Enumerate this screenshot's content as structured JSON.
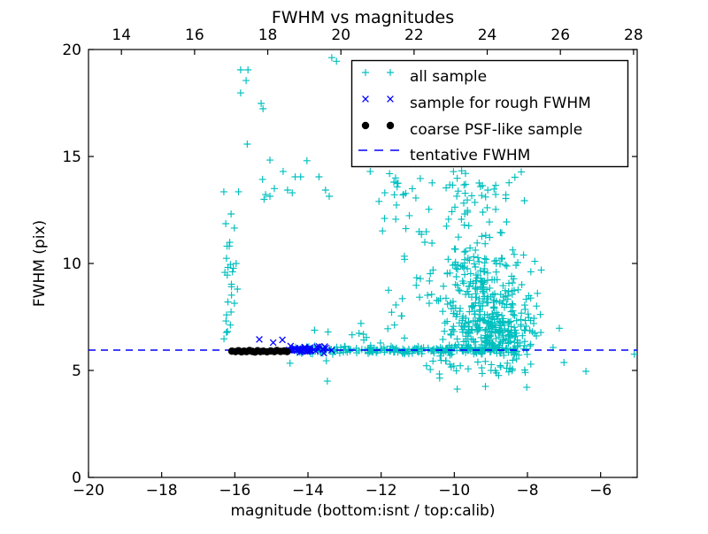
{
  "chart_data": {
    "type": "scatter",
    "title": "FWHM vs magnitudes",
    "xlabel": "magnitude (bottom:isnt / top:calib)",
    "ylabel": "FWHM (pix)",
    "xlim": [
      -20,
      -5
    ],
    "ylim": [
      0,
      20
    ],
    "top_xlim": [
      13.1,
      28.1
    ],
    "xticks": [
      -20,
      -18,
      -16,
      -14,
      -12,
      -10,
      -8,
      -6
    ],
    "yticks": [
      0,
      5,
      10,
      15,
      20
    ],
    "top_xticks": [
      14,
      16,
      18,
      20,
      22,
      24,
      26,
      28
    ],
    "grid": false,
    "tentative_fwhm": 5.95,
    "colors": {
      "all_sample": "#00bfbf",
      "rough_fwhm": "#0000ff",
      "psf_like": "#000000",
      "fwhm_line": "#0000ff",
      "spine": "#000000",
      "background": "#ffffff"
    },
    "legend": {
      "position": "upper right",
      "entries": [
        {
          "label": "all sample",
          "marker": "plus",
          "color": "#00bfbf"
        },
        {
          "label": "sample for rough FWHM",
          "marker": "x",
          "color": "#0000ff"
        },
        {
          "label": "coarse PSF-like sample",
          "marker": "dot",
          "color": "#000000"
        },
        {
          "label": "tentative FWHM",
          "marker": "dashed-line",
          "color": "#0000ff"
        }
      ]
    },
    "rng_seed": 7,
    "series": [
      {
        "name": "all sample",
        "marker": "plus",
        "color": "#00bfbf",
        "points": [
          [
            -15.84,
            19.05
          ],
          [
            -15.64,
            19.05
          ],
          [
            -15.69,
            18.55
          ],
          [
            -15.84,
            17.97
          ],
          [
            -15.28,
            17.48
          ],
          [
            -15.23,
            17.23
          ],
          [
            -15.66,
            15.58
          ],
          [
            -13.35,
            19.62
          ],
          [
            -13.22,
            19.45
          ],
          [
            -15.04,
            14.83
          ],
          [
            -14.03,
            14.8
          ],
          [
            -14.68,
            14.3
          ],
          [
            -14.35,
            14.05
          ],
          [
            -14.2,
            14.05
          ],
          [
            -13.7,
            14.05
          ],
          [
            -15.24,
            13.93
          ],
          [
            -14.92,
            13.5
          ],
          [
            -14.56,
            13.43
          ],
          [
            -13.52,
            13.43
          ],
          [
            -16.3,
            13.35
          ],
          [
            -15.9,
            13.35
          ],
          [
            -15.16,
            13.22
          ],
          [
            -14.43,
            13.3
          ],
          [
            -15.04,
            13.14
          ],
          [
            -13.42,
            13.14
          ],
          [
            -15.2,
            13.0
          ],
          [
            -12.3,
            14.3
          ],
          [
            -11.77,
            14.2
          ],
          [
            -10.93,
            13.97
          ],
          [
            -11.65,
            13.8
          ],
          [
            -11.9,
            13.3
          ],
          [
            -11.4,
            13.2
          ],
          [
            -11.05,
            13.06
          ],
          [
            -12.06,
            12.9
          ],
          [
            -11.58,
            12.73
          ],
          [
            -12.55,
            7.2
          ],
          [
            -13.45,
            6.8
          ],
          [
            -14.49,
            5.34
          ],
          [
            -13.5,
            5.45
          ],
          [
            -13.47,
            4.5
          ],
          [
            -10.4,
            4.64
          ],
          [
            -9.92,
            4.13
          ],
          [
            -9.15,
            4.25
          ],
          [
            -8.02,
            4.21
          ],
          [
            -8.55,
            5.34
          ],
          [
            -8.51,
            4.93
          ],
          [
            -7.13,
            6.97
          ],
          [
            -7.3,
            6.07
          ],
          [
            -7.0,
            5.37
          ],
          [
            -6.4,
            4.96
          ],
          [
            -5.08,
            5.76
          ],
          [
            -7.8,
            10.1
          ]
        ],
        "clusters": [
          {
            "n": 18,
            "x": {
              "u": [
                -16.3,
                -15.92
              ]
            },
            "y": {
              "u": [
                6.25,
                9.9
              ]
            }
          },
          {
            "n": 9,
            "x": {
              "u": [
                -16.28,
                -15.9
              ]
            },
            "y": {
              "u": [
                9.9,
                12.45
              ]
            }
          },
          {
            "n": 11,
            "x": {
              "u": [
                -12.05,
                -11.3
              ]
            },
            "y": {
              "u": [
                8.5,
                14.2
              ]
            }
          },
          {
            "n": 8,
            "x": {
              "u": [
                -12.1,
                -11.2
              ]
            },
            "y": {
              "u": [
                6.5,
                8.4
              ]
            }
          },
          {
            "n": 75,
            "x": {
              "g": [
                -9.6,
                0.95,
                -11.6,
                -7.8
              ]
            },
            "y": {
              "u": [
                10.3,
                14.35
              ]
            }
          },
          {
            "n": 140,
            "x": {
              "g": [
                -9.35,
                0.8,
                -11.5,
                -7.6
              ]
            },
            "y": {
              "u": [
                8.0,
                10.3
              ]
            }
          },
          {
            "n": 270,
            "x": {
              "g": [
                -8.9,
                0.6,
                -10.7,
                -7.5
              ]
            },
            "y": {
              "g": [
                6.95,
                0.8,
                5.95,
                8.6
              ]
            }
          },
          {
            "n": 42,
            "x": {
              "u": [
                -10.8,
                -7.9
              ]
            },
            "y": {
              "u": [
                4.75,
                5.9
              ]
            }
          },
          {
            "n": 230,
            "x": {
              "u": [
                -14.35,
                -8.0
              ]
            },
            "y": {
              "g": [
                5.95,
                0.09,
                5.72,
                6.2
              ]
            }
          },
          {
            "n": 7,
            "x": {
              "u": [
                -13.9,
                -11.9
              ]
            },
            "y": {
              "u": [
                6.25,
                7.0
              ]
            }
          }
        ]
      },
      {
        "name": "sample for rough FWHM",
        "marker": "x",
        "color": "#0000ff",
        "points": [
          [
            -15.33,
            6.45
          ],
          [
            -14.95,
            6.3
          ],
          [
            -14.7,
            6.43
          ]
        ],
        "clusters": [
          {
            "n": 42,
            "x": {
              "g": [
                -13.9,
                0.33,
                -14.6,
                -12.85
              ]
            },
            "y": {
              "g": [
                5.98,
                0.08,
                5.8,
                6.18
              ]
            }
          }
        ]
      },
      {
        "name": "coarse PSF-like sample",
        "marker": "dot",
        "color": "#000000",
        "points": [
          [
            -16.08,
            5.9
          ],
          [
            -15.98,
            5.88
          ],
          [
            -15.9,
            5.92
          ],
          [
            -15.82,
            5.87
          ],
          [
            -15.75,
            5.9
          ],
          [
            -15.68,
            5.88
          ],
          [
            -15.6,
            5.93
          ],
          [
            -15.52,
            5.89
          ],
          [
            -15.45,
            5.86
          ],
          [
            -15.38,
            5.92
          ],
          [
            -15.3,
            5.88
          ],
          [
            -15.22,
            5.9
          ],
          [
            -15.12,
            5.87
          ],
          [
            -15.02,
            5.91
          ],
          [
            -14.92,
            5.88
          ],
          [
            -14.85,
            5.93
          ],
          [
            -14.75,
            5.89
          ],
          [
            -14.65,
            5.91
          ],
          [
            -14.57,
            5.88
          ]
        ],
        "clusters": []
      },
      {
        "name": "tentative FWHM",
        "marker": "dashed-line",
        "color": "#0000ff",
        "hline_y": 5.95
      }
    ]
  }
}
